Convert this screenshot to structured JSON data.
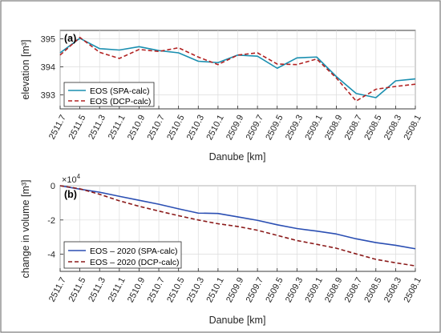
{
  "chart_data": [
    {
      "panel_label": "(a)",
      "type": "line",
      "xlabel": "Danube [km]",
      "ylabel": "elevation [m³]",
      "x": [
        2511.7,
        2511.5,
        2511.3,
        2511.1,
        2510.9,
        2510.7,
        2510.5,
        2510.3,
        2510.1,
        2509.9,
        2509.7,
        2509.5,
        2509.3,
        2509.1,
        2508.9,
        2508.7,
        2508.5,
        2508.3,
        2508.1
      ],
      "xticklabels": [
        "2511.7",
        "2511.5",
        "2511.3",
        "2511.1",
        "2510.9",
        "2510.7",
        "2510.5",
        "2510.3",
        "2510.1",
        "2509.9",
        "2509.7",
        "2509.5",
        "2509.3",
        "2509.1",
        "2508.9",
        "2508.7",
        "2508.5",
        "2508.3",
        "2508.1"
      ],
      "xlim": [
        2511.7,
        2508.1
      ],
      "ylim": [
        392.5,
        395.3
      ],
      "yticks": [
        393,
        394,
        395
      ],
      "yticklabels": [
        "393",
        "394",
        "395"
      ],
      "grid": true,
      "legend_position": "bottom-left",
      "series": [
        {
          "name": "EOS (SPA-calc)",
          "color": "#1a8fb0",
          "dash": "solid",
          "values": [
            394.5,
            395.02,
            394.65,
            394.6,
            394.72,
            394.58,
            394.5,
            394.2,
            394.15,
            394.42,
            394.38,
            393.95,
            394.32,
            394.35,
            393.65,
            393.05,
            392.9,
            393.5,
            393.57
          ]
        },
        {
          "name": "EOS (DCP-calc)",
          "color": "#b22222",
          "dash": "dashed",
          "values": [
            394.42,
            395.05,
            394.52,
            394.3,
            394.62,
            394.55,
            394.68,
            394.35,
            394.08,
            394.42,
            394.5,
            394.1,
            394.08,
            394.28,
            393.6,
            392.78,
            393.2,
            393.3,
            393.38
          ]
        }
      ]
    },
    {
      "panel_label": "(b)",
      "type": "line",
      "xlabel": "Danube [km]",
      "ylabel": "change in volume [m³]",
      "exponent_base": "×10",
      "exponent_power": "4",
      "x": [
        2511.7,
        2511.5,
        2511.3,
        2511.1,
        2510.9,
        2510.7,
        2510.5,
        2510.3,
        2510.1,
        2509.9,
        2509.7,
        2509.5,
        2509.3,
        2509.1,
        2508.9,
        2508.7,
        2508.5,
        2508.3,
        2508.1
      ],
      "xticklabels": [
        "2511.7",
        "2511.5",
        "2511.3",
        "2511.1",
        "2510.9",
        "2510.7",
        "2510.5",
        "2510.3",
        "2510.1",
        "2509.9",
        "2509.7",
        "2509.5",
        "2509.3",
        "2509.1",
        "2508.9",
        "2508.7",
        "2508.5",
        "2508.3",
        "2508.1"
      ],
      "xlim": [
        2511.7,
        2508.1
      ],
      "ylim": [
        -5,
        0
      ],
      "yticks": [
        -4,
        -2,
        0
      ],
      "yticklabels": [
        "-4",
        "-2",
        "0"
      ],
      "grid": true,
      "legend_position": "bottom-left",
      "series": [
        {
          "name": "EOS – 2020 (SPA-calc)",
          "color": "#2b4fb3",
          "dash": "solid",
          "values": [
            0,
            -0.2,
            -0.38,
            -0.62,
            -0.85,
            -1.08,
            -1.35,
            -1.6,
            -1.62,
            -1.82,
            -2.02,
            -2.28,
            -2.5,
            -2.65,
            -2.82,
            -3.1,
            -3.32,
            -3.48,
            -3.68
          ]
        },
        {
          "name": "EOS – 2020 (DCP-calc)",
          "color": "#8b1a1a",
          "dash": "dashed",
          "values": [
            0,
            -0.18,
            -0.5,
            -0.88,
            -1.2,
            -1.48,
            -1.75,
            -2.0,
            -2.22,
            -2.38,
            -2.6,
            -2.9,
            -3.2,
            -3.42,
            -3.65,
            -3.98,
            -4.3,
            -4.5,
            -4.68
          ]
        }
      ]
    }
  ]
}
